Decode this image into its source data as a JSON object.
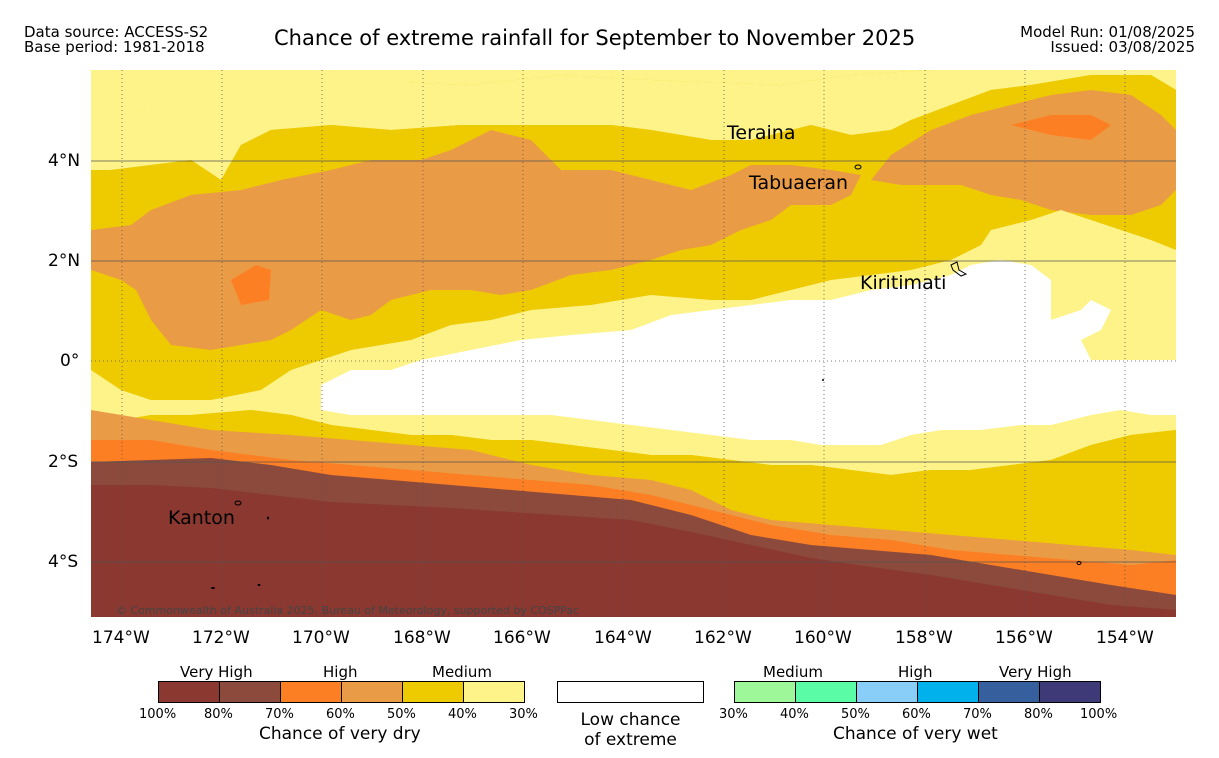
{
  "header": {
    "source_line1": "Data source: ACCESS-S2",
    "source_line2": "Base period: 1981-2018",
    "title": "Chance of extreme rainfall for September to November 2025",
    "model_run": "Model Run: 01/08/2025",
    "issued": "Issued: 03/08/2025"
  },
  "map": {
    "lat_labels": [
      "4°N",
      "2°N",
      "0°",
      "2°S",
      "4°S"
    ],
    "lon_labels": [
      "174°W",
      "172°W",
      "170°W",
      "168°W",
      "166°W",
      "164°W",
      "162°W",
      "160°W",
      "158°W",
      "156°W",
      "154°W"
    ],
    "places": {
      "teraina": "Teraina",
      "tabuaeran": "Tabuaeran",
      "kiritimati": "Kiritimati",
      "kanton": "Kanton"
    },
    "copyright": "© Commonwealth of Australia 2025, Bureau of Meteorology, supported by COSPPac"
  },
  "legend": {
    "dry": {
      "labels": [
        "Very High",
        "High",
        "Medium"
      ],
      "ticks": [
        "100%",
        "80%",
        "70%",
        "60%",
        "50%",
        "40%",
        "30%"
      ],
      "colors": [
        "#8a3830",
        "#8b4a3b",
        "#fd7f23",
        "#ea9b45",
        "#eecb00",
        "#fdf388"
      ],
      "title": "Chance of very dry"
    },
    "low": {
      "line1": "Low chance",
      "line2": "of extreme",
      "color": "#ffffff"
    },
    "wet": {
      "labels": [
        "Medium",
        "High",
        "Very High"
      ],
      "ticks": [
        "30%",
        "40%",
        "50%",
        "60%",
        "70%",
        "80%",
        "100%"
      ],
      "colors": [
        "#9ef89a",
        "#5afca6",
        "#88cef8",
        "#00b1ec",
        "#365f9e",
        "#3e3a78"
      ],
      "title": "Chance of very wet"
    }
  }
}
